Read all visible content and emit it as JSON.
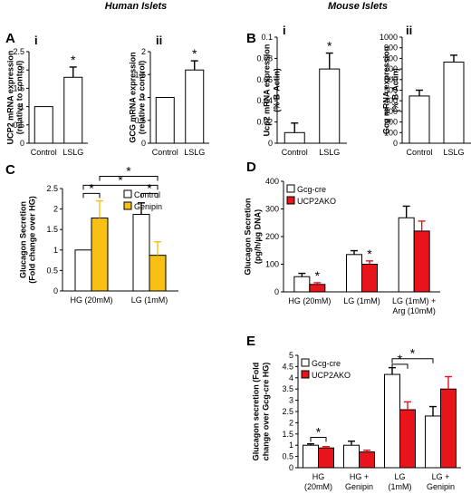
{
  "headers": {
    "human": "Human Islets",
    "mouse": "Mouse Islets"
  },
  "colors": {
    "control": "#ffffff",
    "lslg_human": "#b7a5cf",
    "lslg_mouse": "#2f5a8c",
    "genipin": "#f8bf16",
    "ucp2ako": "#e8131b",
    "stroke": "#000000"
  },
  "chart_data": [
    {
      "id": "A-i",
      "panel": "A",
      "sub": "i",
      "type": "bar",
      "categories": [
        "Control",
        "LSLG"
      ],
      "series": [
        {
          "values": [
            1.0,
            1.8
          ],
          "errors": [
            0,
            0.28
          ]
        }
      ],
      "series_colors": [
        "control",
        "lslg_human"
      ],
      "ylabel_lines": [
        "UCP2 mRNA expression",
        "(relative to control)"
      ],
      "ylim": [
        0,
        2.5
      ],
      "yticks": [
        "0",
        "0.5",
        "1",
        "1.5",
        "2",
        "2.5"
      ],
      "stars": [
        {
          "series": 0,
          "cat": 1
        }
      ]
    },
    {
      "id": "A-ii",
      "sub": "ii",
      "type": "bar",
      "categories": [
        "Control",
        "LSLG"
      ],
      "series": [
        {
          "values": [
            1.0,
            1.6
          ],
          "errors": [
            0,
            0.2
          ]
        }
      ],
      "series_colors": [
        "control",
        "lslg_human"
      ],
      "ylabel_lines": [
        "GCG mRNA expression",
        "(relative to control)"
      ],
      "ylim": [
        0,
        2
      ],
      "yticks": [
        "0",
        "0.5",
        "1",
        "1.5",
        "2"
      ],
      "stars": [
        {
          "series": 0,
          "cat": 1
        }
      ]
    },
    {
      "id": "B-i",
      "panel": "B",
      "sub": "i",
      "type": "bar",
      "categories": [
        "Control",
        "LSLG"
      ],
      "series": [
        {
          "values": [
            0.01,
            0.07
          ],
          "errors": [
            0.009,
            0.015
          ]
        }
      ],
      "series_colors": [
        "control",
        "lslg_mouse"
      ],
      "ylabel_lines": [
        "Ucp2 mRNA expression",
        "(% B-Actin)"
      ],
      "ylim": [
        0,
        0.1
      ],
      "yticks": [
        "0",
        "0.02",
        "0.04",
        "0.06",
        "0.08",
        "0.1"
      ],
      "stars": [
        {
          "series": 0,
          "cat": 1
        }
      ]
    },
    {
      "id": "B-ii",
      "sub": "ii",
      "type": "bar",
      "categories": [
        "Control",
        "LSLG"
      ],
      "series": [
        {
          "values": [
            445,
            765
          ],
          "errors": [
            55,
            65
          ]
        }
      ],
      "series_colors": [
        "control",
        "lslg_mouse"
      ],
      "ylabel_lines": [
        "Gcg mRNA expression",
        "(% B-Actin)"
      ],
      "ylim": [
        0,
        1000
      ],
      "yticks": [
        "0",
        "100",
        "200",
        "300",
        "400",
        "500",
        "600",
        "700",
        "800",
        "900",
        "1000"
      ],
      "stars": []
    },
    {
      "id": "C",
      "panel": "C",
      "type": "bar",
      "categories": [
        "HG (20mM)",
        "LG (1mM)"
      ],
      "series": [
        {
          "name": "Control",
          "values": [
            1.0,
            1.87
          ],
          "errors": [
            0,
            0.28
          ]
        },
        {
          "name": "Genipin",
          "values": [
            1.78,
            0.87
          ],
          "errors": [
            0.42,
            0.33
          ]
        }
      ],
      "series_colors": [
        "control",
        "genipin"
      ],
      "ylabel_lines": [
        "Glucagon Secretion",
        "(Fold change over HG)"
      ],
      "ylim": [
        0,
        2.5
      ],
      "yticks": [
        "0",
        "0.5",
        "1",
        "1.5",
        "2",
        "2.5"
      ],
      "legend": "top-right",
      "brackets": [
        {
          "from": [
            0,
            0
          ],
          "to": [
            0,
            1
          ],
          "level": 2.38
        },
        {
          "from": [
            1,
            0
          ],
          "to": [
            1,
            1
          ],
          "level": 2.38
        },
        {
          "from": [
            0,
            0
          ],
          "to": [
            1,
            1
          ],
          "level": 2.58
        },
        {
          "from": [
            0,
            1
          ],
          "to": [
            1,
            1
          ],
          "level": 2.8
        }
      ]
    },
    {
      "id": "D",
      "panel": "D",
      "type": "bar",
      "categories": [
        "HG (20mM)",
        "LG (1mM)",
        "LG (1mM) +\nArg (10mM)"
      ],
      "series": [
        {
          "name": "Gcg-cre",
          "values": [
            55,
            135,
            268
          ],
          "errors": [
            12,
            14,
            42
          ]
        },
        {
          "name": "UCP2AKO",
          "values": [
            27,
            100,
            220
          ],
          "errors": [
            6,
            12,
            36
          ]
        }
      ],
      "series_colors": [
        "control",
        "ucp2ako"
      ],
      "ylabel_lines": [
        "Glucagon Secretion",
        "(pg/h/µg DNA)"
      ],
      "ylim": [
        0,
        400
      ],
      "yticks": [
        "0",
        "100",
        "200",
        "300",
        "400"
      ],
      "legend": "top-left",
      "stars": [
        {
          "series": 1,
          "cat": 0
        },
        {
          "series": 1,
          "cat": 1
        }
      ]
    },
    {
      "id": "E",
      "panel": "E",
      "type": "bar",
      "categories": [
        "HG\n(20mM)",
        "HG +\nGenipin",
        "LG\n(1mM)",
        "LG +\nGenipin"
      ],
      "series": [
        {
          "name": "Gcg-cre",
          "values": [
            1.0,
            1.0,
            4.15,
            2.3
          ],
          "errors": [
            0.06,
            0.18,
            0.3,
            0.42
          ]
        },
        {
          "name": "UCP2AKO",
          "values": [
            0.88,
            0.7,
            2.58,
            3.5
          ],
          "errors": [
            0.06,
            0.08,
            0.35,
            0.55
          ]
        }
      ],
      "series_colors": [
        "control",
        "ucp2ako"
      ],
      "ylabel_lines": [
        "Glucagon secretion (Fold",
        "change over Gcg-cre HG)"
      ],
      "ylim": [
        0,
        5
      ],
      "yticks": [
        "0",
        "0.5",
        "1",
        "1.5",
        "2",
        "2.5",
        "3",
        "3.5",
        "4",
        "4.5",
        "5"
      ],
      "legend": "top-left",
      "brackets": [
        {
          "from": [
            0,
            0
          ],
          "to": [
            0,
            1
          ],
          "level": 1.35
        },
        {
          "from": [
            2,
            0
          ],
          "to": [
            2,
            1
          ],
          "level": 4.6
        },
        {
          "from": [
            2,
            0
          ],
          "to": [
            3,
            0
          ],
          "level": 4.85
        }
      ]
    }
  ]
}
